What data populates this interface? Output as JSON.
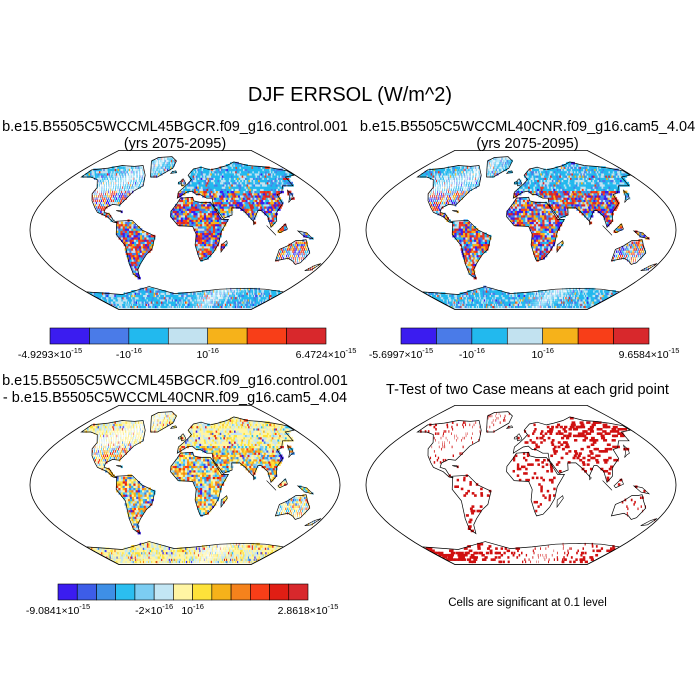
{
  "figure": {
    "title": "DJF ERRSOL (W/m^2)",
    "note": "Cells are significant at 0.1 level"
  },
  "chart_data": [
    {
      "type": "heatmap",
      "id": "panel1",
      "title_lines": [
        "b.e15.B5505C5WCCML45BGCR.f09_g16.control.001",
        "(yrs 2075-2095)"
      ],
      "projection": "robinson",
      "colorbar": {
        "colors": [
          "#3b1cf0",
          "#4a7be8",
          "#22b9ee",
          "#c2e2f0",
          "#f6b21a",
          "#f83e18",
          "#d8282c"
        ],
        "labels": [
          {
            "at": 0,
            "mant": "-4.9293",
            "sep": "×10",
            "exp": "-15"
          },
          {
            "at": 2,
            "mant": "-10",
            "sep": "",
            "exp": "-16"
          },
          {
            "at": 4,
            "mant": "10",
            "sep": "",
            "exp": "-16"
          },
          {
            "at": 7,
            "mant": "6.4724",
            "sep": "×10",
            "exp": "-15"
          }
        ]
      }
    },
    {
      "type": "heatmap",
      "id": "panel2",
      "title_lines": [
        "b.e15.B5505C5WCCML40CNR.f09_g16.cam5_4.04",
        "(yrs 2075-2095)"
      ],
      "projection": "robinson",
      "colorbar": {
        "colors": [
          "#3b1cf0",
          "#4a7be8",
          "#22b9ee",
          "#c2e2f0",
          "#f6b21a",
          "#f83e18",
          "#d8282c"
        ],
        "labels": [
          {
            "at": 0,
            "mant": "-5.6997",
            "sep": "×10",
            "exp": "-15"
          },
          {
            "at": 2,
            "mant": "-10",
            "sep": "",
            "exp": "-16"
          },
          {
            "at": 4,
            "mant": "10",
            "sep": "",
            "exp": "-16"
          },
          {
            "at": 7,
            "mant": "9.6584",
            "sep": "×10",
            "exp": "-15"
          }
        ]
      }
    },
    {
      "type": "heatmap",
      "id": "panel3",
      "title_lines": [
        "b.e15.B5505C5WCCML45BGCR.f09_g16.control.001",
        "- b.e15.B5505C5WCCML40CNR.f09_g16.cam5_4.04"
      ],
      "projection": "robinson",
      "colorbar": {
        "colors": [
          "#3b1cf0",
          "#3d5de8",
          "#3e8fe6",
          "#2bbef0",
          "#7ccdf2",
          "#c3e6f4",
          "#fff5a3",
          "#fde23a",
          "#f6b21a",
          "#f5821c",
          "#f83e18",
          "#e01e14",
          "#d8282c"
        ],
        "labels": [
          {
            "at": 0,
            "mant": "-9.0841",
            "sep": "×10",
            "exp": "-15"
          },
          {
            "at": 5,
            "mant": "-2",
            "sep": "×10",
            "exp": "-16"
          },
          {
            "at": 7,
            "mant": "10",
            "sep": "",
            "exp": "-16"
          },
          {
            "at": 13,
            "mant": "2.8618",
            "sep": "×10",
            "exp": "-15"
          }
        ]
      }
    },
    {
      "type": "heatmap",
      "id": "panel4",
      "title_lines": [
        "T-Test of two Case means at each grid point"
      ],
      "projection": "robinson",
      "significance_color": "#d01010",
      "significance_level": 0.1
    }
  ]
}
